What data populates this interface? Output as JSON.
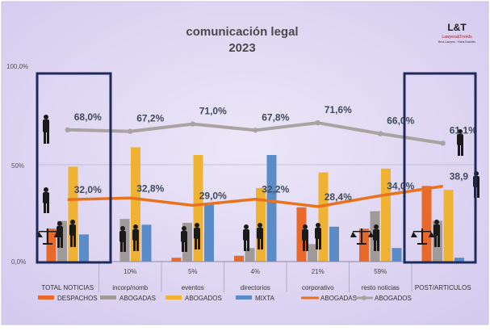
{
  "chart_data": {
    "type": "bar",
    "title": "comunicación legal",
    "subtitle": "2023",
    "logo": {
      "mark": "L&T",
      "name": "Lawyers&Trends",
      "tagline": "Best Lawyers · Harts Bubbles"
    },
    "y_tick_labels": [
      "100,0%",
      "50%",
      "0,0%"
    ],
    "ylim": [
      0,
      100
    ],
    "categories": [
      "TOTAL NOTICIAS",
      "incorp/nomb",
      "eventos",
      "directorios",
      "corporativo",
      "resto noticias",
      "POST/ARTICULOS"
    ],
    "category_shares": [
      "",
      "10%",
      "5%",
      "4%",
      "21%",
      "59%",
      ""
    ],
    "bar_series": [
      {
        "name": "DESPACHOS",
        "color": "#E8692A",
        "values": [
          17,
          0,
          2,
          3,
          28,
          17,
          39
        ]
      },
      {
        "name": "ABOGADAS",
        "color": "#A09A98",
        "values": [
          21,
          22,
          20,
          7,
          9,
          26,
          21
        ]
      },
      {
        "name": "ABOGADOS",
        "color": "#F0B233",
        "values": [
          49,
          59,
          55,
          38,
          46,
          48,
          37
        ]
      },
      {
        "name": "MIXTA",
        "color": "#5B8CC8",
        "values": [
          14,
          19,
          30,
          55,
          18,
          7,
          2
        ]
      }
    ],
    "line_series": [
      {
        "name": "ABOGADAS",
        "color": "#E8731F",
        "values": [
          32.0,
          32.8,
          29.0,
          32.2,
          28.4,
          34.0,
          38.9
        ],
        "labels": [
          "32,0%",
          "32,8%",
          "29,0%",
          "32,2%",
          "28,4%",
          "34,0%",
          "38,9"
        ]
      },
      {
        "name": "ABOGADOS",
        "color": "#A9A3A1",
        "values": [
          68.0,
          67.2,
          71.0,
          67.8,
          71.6,
          66.0,
          61.1
        ],
        "labels": [
          "68,0%",
          "67,2%",
          "71,0%",
          "67,8%",
          "71,6%",
          "66,0%",
          "61,1%"
        ]
      }
    ],
    "highlighted_categories": [
      "TOTAL NOTICIAS",
      "POST/ARTICULOS"
    ],
    "colors": {
      "background": "#DCD3F2",
      "highlight_box": "#1E2A5A",
      "grid": "#BDB6CE"
    }
  }
}
